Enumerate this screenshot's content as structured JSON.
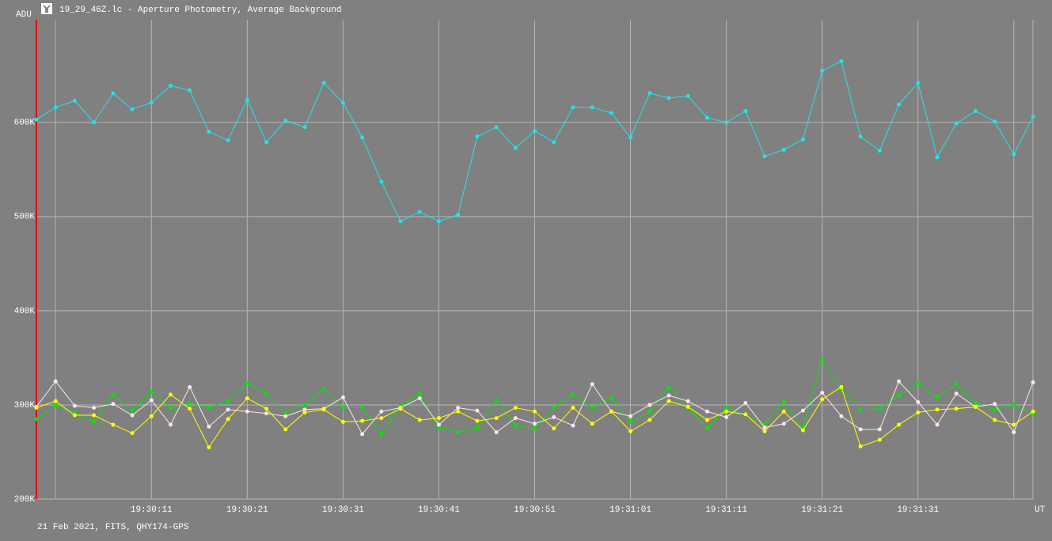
{
  "chart_data": {
    "type": "line",
    "title": "19_29_46Z.lc - Aperture Photometry, Average Background",
    "y_label": "ADU",
    "x_label": "UT",
    "footer": "21 Feb 2021, FITS, QHY174-GPS",
    "categories": [
      null,
      null,
      null,
      null,
      null,
      null,
      "19:30:11",
      null,
      null,
      null,
      null,
      "19:30:21",
      null,
      null,
      null,
      null,
      "19:30:31",
      null,
      null,
      null,
      null,
      "19:30:41",
      null,
      null,
      null,
      null,
      "19:30:51",
      null,
      null,
      null,
      null,
      "19:31:01",
      null,
      null,
      null,
      null,
      "19:31:11",
      null,
      null,
      null,
      null,
      "19:31:21",
      null,
      null,
      null,
      null,
      "19:31:31",
      null,
      null,
      null,
      null,
      null,
      null
    ],
    "series": [
      {
        "color": "#20e4ec",
        "values": [
          603000,
          616000,
          623000,
          600000,
          631000,
          614000,
          621000,
          639000,
          634000,
          590000,
          581000,
          624000,
          579000,
          602000,
          595000,
          642000,
          621000,
          584000,
          537000,
          495000,
          505000,
          495000,
          502000,
          585000,
          595000,
          573000,
          591000,
          579000,
          616000,
          616000,
          610000,
          584000,
          631000,
          626000,
          628000,
          605000,
          600000,
          612000,
          564000,
          571000,
          582000,
          655000,
          665000,
          585000,
          570000,
          619000,
          642000,
          563000,
          599000,
          612000,
          601000,
          566000,
          606000
        ]
      },
      {
        "color": "#00e800",
        "values": [
          285000,
          299000,
          292000,
          282000,
          311000,
          294000,
          314000,
          297000,
          302000,
          297000,
          304000,
          323000,
          312000,
          292000,
          300000,
          317000,
          297000,
          297000,
          269000,
          299000,
          312000,
          276000,
          271000,
          276000,
          305000,
          278000,
          275000,
          297000,
          311000,
          297000,
          307000,
          282000,
          293000,
          319000,
          297000,
          275000,
          297000,
          290000,
          279000,
          303000,
          276000,
          348000,
          316000,
          295000,
          296000,
          310000,
          323000,
          308000,
          322000,
          302000,
          295000,
          300000,
          291000
        ]
      },
      {
        "color": "#ffe4ec",
        "values": [
          298000,
          325000,
          299000,
          297000,
          301000,
          289000,
          305000,
          279000,
          319000,
          277000,
          295000,
          293000,
          291000,
          288000,
          295000,
          296000,
          308000,
          269000,
          293000,
          297000,
          307000,
          279000,
          297000,
          294000,
          271000,
          286000,
          280000,
          287000,
          278000,
          322000,
          293000,
          288000,
          300000,
          310000,
          304000,
          293000,
          287000,
          302000,
          276000,
          280000,
          294000,
          313000,
          288000,
          274000,
          274000,
          325000,
          303000,
          279000,
          312000,
          298000,
          301000,
          271000,
          324000
        ]
      },
      {
        "color": "#ffff00",
        "values": [
          297000,
          304000,
          289000,
          289000,
          279000,
          270000,
          288000,
          311000,
          296000,
          255000,
          285000,
          307000,
          296000,
          274000,
          292000,
          295000,
          282000,
          283000,
          286000,
          296000,
          284000,
          286000,
          293000,
          283000,
          286000,
          297000,
          293000,
          275000,
          297000,
          280000,
          293000,
          272000,
          284000,
          304000,
          298000,
          284000,
          293000,
          290000,
          272000,
          293000,
          273000,
          306000,
          319000,
          256000,
          263000,
          279000,
          292000,
          295000,
          296000,
          298000,
          284000,
          279000,
          293000
        ]
      }
    ],
    "ylim": [
      200000,
      709000
    ],
    "yticks": [
      {
        "value": 200000,
        "label": "200K"
      },
      {
        "value": 300000,
        "label": "300K"
      },
      {
        "value": 400000,
        "label": "400K"
      },
      {
        "value": 500000,
        "label": "500K"
      },
      {
        "value": 600000,
        "label": "600K"
      }
    ],
    "grid": true,
    "axis_color": "#e00000"
  }
}
